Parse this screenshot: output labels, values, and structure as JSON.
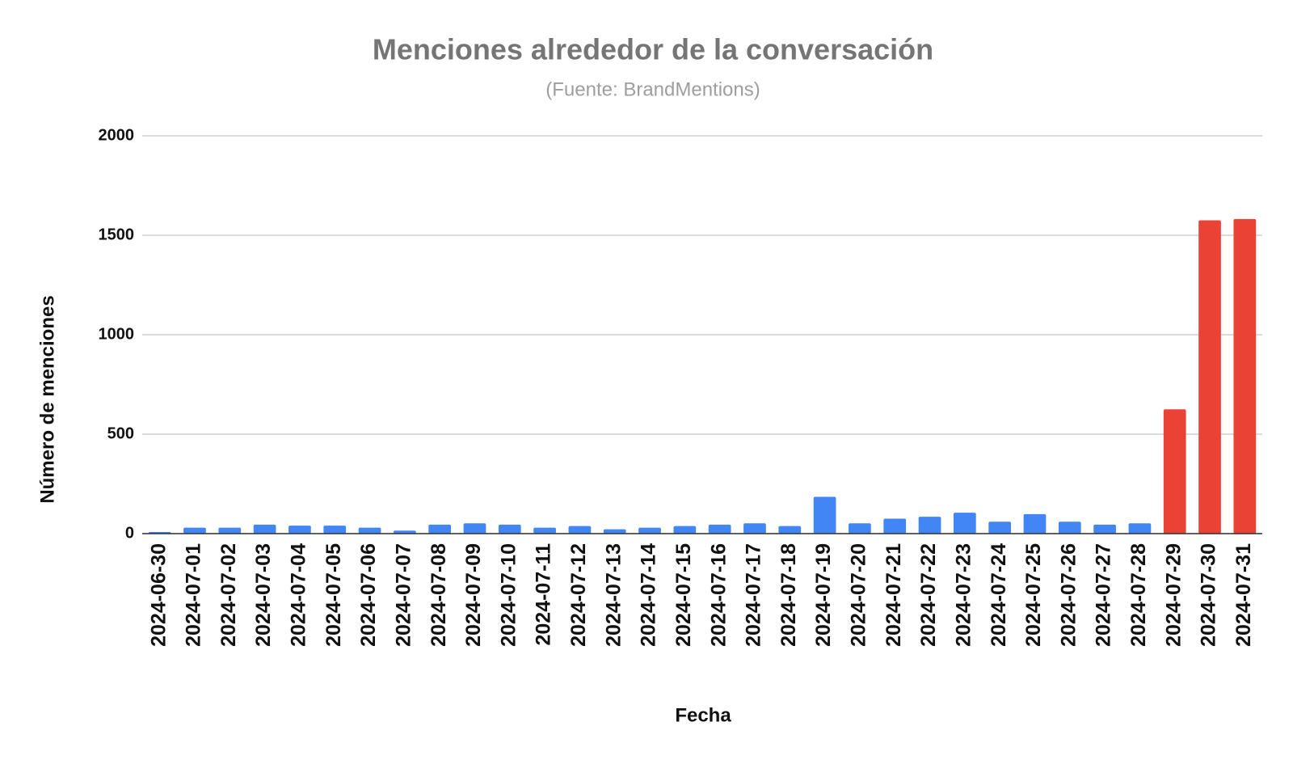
{
  "chart_data": {
    "type": "bar",
    "title": "Menciones alrededor de la conversación",
    "subtitle": "(Fuente: BrandMentions)",
    "x_label": "Fecha",
    "y_label": "Número de menciones",
    "categories": [
      "2024-06-30",
      "2024-07-01",
      "2024-07-02",
      "2024-07-03",
      "2024-07-04",
      "2024-07-05",
      "2024-07-06",
      "2024-07-07",
      "2024-07-08",
      "2024-07-09",
      "2024-07-10",
      "2024-07-11",
      "2024-07-12",
      "2024-07-13",
      "2024-07-14",
      "2024-07-15",
      "2024-07-16",
      "2024-07-17",
      "2024-07-18",
      "2024-07-19",
      "2024-07-20",
      "2024-07-21",
      "2024-07-22",
      "2024-07-23",
      "2024-07-24",
      "2024-07-25",
      "2024-07-26",
      "2024-07-27",
      "2024-07-28",
      "2024-07-29",
      "2024-07-30",
      "2024-07-31"
    ],
    "values": [
      8,
      30,
      30,
      45,
      40,
      40,
      30,
      15,
      45,
      52,
      45,
      30,
      38,
      22,
      30,
      38,
      45,
      52,
      38,
      185,
      52,
      75,
      85,
      105,
      60,
      98,
      60,
      45,
      52,
      625,
      1575,
      1582
    ],
    "colors": [
      "#4285f4",
      "#4285f4",
      "#4285f4",
      "#4285f4",
      "#4285f4",
      "#4285f4",
      "#4285f4",
      "#4285f4",
      "#4285f4",
      "#4285f4",
      "#4285f4",
      "#4285f4",
      "#4285f4",
      "#4285f4",
      "#4285f4",
      "#4285f4",
      "#4285f4",
      "#4285f4",
      "#4285f4",
      "#4285f4",
      "#4285f4",
      "#4285f4",
      "#4285f4",
      "#4285f4",
      "#4285f4",
      "#4285f4",
      "#4285f4",
      "#4285f4",
      "#4285f4",
      "#ea4335",
      "#ea4335",
      "#ea4335"
    ],
    "ylim": [
      0,
      2000
    ],
    "yticks": [
      0,
      500,
      1000,
      1500,
      2000
    ],
    "grid": true
  }
}
